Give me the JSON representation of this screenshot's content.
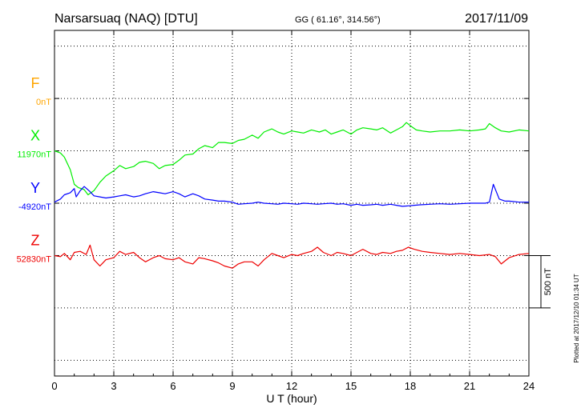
{
  "header": {
    "station": "Narsarsuaq (NAQ)  [DTU]",
    "coords": "GG ( 61.16°, 314.56°)",
    "date": "2017/11/09"
  },
  "footer": {
    "plotted": "Plotted at 2017/12/10 01:34 UT"
  },
  "chart_data": {
    "type": "line",
    "xlabel": "U T (hour)",
    "xlim": [
      0,
      24
    ],
    "xticks": [
      "0",
      "3",
      "6",
      "9",
      "12",
      "15",
      "18",
      "21",
      "24"
    ],
    "ylim_nT": [
      -1650,
      1650
    ],
    "scale_bar_label": "500 nT",
    "scale_bar_nT": 500,
    "series": [
      {
        "name": "F",
        "baseline_label": "0nT",
        "baseline_offset_nT": 1000,
        "color": "#ffa500",
        "x": [],
        "values": []
      },
      {
        "name": "X",
        "baseline_label": "11970nT",
        "baseline_offset_nT": 500,
        "color": "#00ee00",
        "x": [
          0,
          0.3,
          0.5,
          0.8,
          1.0,
          1.2,
          1.5,
          1.7,
          2.0,
          2.3,
          2.6,
          3.0,
          3.3,
          3.6,
          4.0,
          4.3,
          4.6,
          5.0,
          5.3,
          5.6,
          6.0,
          6.3,
          6.6,
          7.0,
          7.3,
          7.6,
          8.0,
          8.3,
          8.6,
          9.0,
          9.3,
          9.6,
          10.0,
          10.3,
          10.6,
          11.0,
          11.3,
          11.6,
          12.0,
          12.3,
          12.6,
          13.0,
          13.2,
          13.4,
          13.7,
          14.0,
          14.3,
          14.6,
          15.0,
          15.3,
          15.6,
          16.0,
          16.3,
          16.6,
          17.0,
          17.3,
          17.6,
          17.8,
          18.0,
          18.3,
          18.6,
          19.0,
          19.5,
          20.0,
          20.5,
          21.0,
          21.5,
          21.8,
          22.0,
          22.3,
          22.6,
          23.0,
          23.5,
          24.0
        ],
        "values": [
          500,
          480,
          440,
          320,
          180,
          150,
          130,
          80,
          120,
          200,
          260,
          310,
          360,
          330,
          350,
          390,
          400,
          380,
          330,
          360,
          370,
          410,
          460,
          470,
          520,
          550,
          530,
          580,
          580,
          570,
          600,
          610,
          650,
          620,
          680,
          710,
          680,
          660,
          690,
          680,
          670,
          700,
          690,
          680,
          700,
          660,
          680,
          700,
          660,
          700,
          720,
          710,
          700,
          720,
          670,
          700,
          730,
          770,
          740,
          700,
          690,
          680,
          690,
          690,
          700,
          690,
          700,
          710,
          760,
          720,
          690,
          680,
          700,
          690
        ]
      },
      {
        "name": "Y",
        "baseline_label": "-4920nT",
        "baseline_offset_nT": 0,
        "color": "#0000ff",
        "x": [
          0,
          0.3,
          0.5,
          0.8,
          1.0,
          1.1,
          1.3,
          1.5,
          1.8,
          2.0,
          2.3,
          2.6,
          3.0,
          3.3,
          3.6,
          4.0,
          4.3,
          4.6,
          5.0,
          5.3,
          5.6,
          6.0,
          6.3,
          6.6,
          7.0,
          7.3,
          7.6,
          8.0,
          8.3,
          8.6,
          9.0,
          9.3,
          9.6,
          10.0,
          10.3,
          10.6,
          11.0,
          11.3,
          11.6,
          12.0,
          12.3,
          12.6,
          13.0,
          13.3,
          13.6,
          14.0,
          14.3,
          14.6,
          15.0,
          15.3,
          15.6,
          16.0,
          16.3,
          16.6,
          17.0,
          17.3,
          17.6,
          17.9,
          18.2,
          18.5,
          19.0,
          19.5,
          20.0,
          20.5,
          21.0,
          21.5,
          21.8,
          22.0,
          22.2,
          22.5,
          22.8,
          23.0,
          23.5,
          24.0
        ],
        "values": [
          10,
          40,
          80,
          100,
          140,
          60,
          120,
          160,
          110,
          70,
          60,
          50,
          60,
          70,
          80,
          60,
          70,
          90,
          110,
          100,
          90,
          110,
          90,
          60,
          90,
          70,
          40,
          30,
          20,
          20,
          10,
          -10,
          -5,
          0,
          10,
          0,
          -5,
          -10,
          0,
          -5,
          -10,
          0,
          -5,
          -10,
          -5,
          0,
          -10,
          -5,
          -20,
          -10,
          -20,
          -15,
          -10,
          -20,
          -10,
          -20,
          -30,
          -25,
          -20,
          -15,
          -10,
          -5,
          -10,
          -5,
          0,
          0,
          0,
          10,
          180,
          40,
          20,
          20,
          10,
          10
        ]
      },
      {
        "name": "Z",
        "baseline_label": "52830nT",
        "baseline_offset_nT": -500,
        "color": "#ee0000",
        "x": [
          0,
          0.3,
          0.5,
          0.8,
          1.0,
          1.3,
          1.6,
          1.8,
          2.0,
          2.3,
          2.6,
          3.0,
          3.3,
          3.6,
          4.0,
          4.3,
          4.6,
          5.0,
          5.3,
          5.6,
          6.0,
          6.3,
          6.6,
          7.0,
          7.3,
          7.6,
          8.0,
          8.3,
          8.6,
          9.0,
          9.3,
          9.6,
          10.0,
          10.3,
          10.6,
          11.0,
          11.3,
          11.6,
          12.0,
          12.3,
          12.6,
          13.0,
          13.3,
          13.6,
          14.0,
          14.3,
          14.6,
          15.0,
          15.3,
          15.6,
          16.0,
          16.3,
          16.6,
          17.0,
          17.3,
          17.6,
          17.9,
          18.2,
          18.6,
          19.0,
          19.5,
          20.0,
          20.5,
          21.0,
          21.5,
          22.0,
          22.3,
          22.6,
          23.0,
          23.5,
          24.0
        ],
        "values": [
          -500,
          -510,
          -480,
          -540,
          -470,
          -460,
          -490,
          -400,
          -540,
          -600,
          -540,
          -520,
          -460,
          -490,
          -470,
          -520,
          -560,
          -520,
          -500,
          -530,
          -540,
          -520,
          -560,
          -580,
          -520,
          -530,
          -550,
          -570,
          -600,
          -620,
          -580,
          -560,
          -560,
          -600,
          -540,
          -480,
          -500,
          -520,
          -490,
          -500,
          -480,
          -460,
          -420,
          -470,
          -500,
          -470,
          -480,
          -500,
          -470,
          -440,
          -480,
          -490,
          -470,
          -480,
          -460,
          -450,
          -420,
          -440,
          -460,
          -470,
          -480,
          -490,
          -480,
          -490,
          -500,
          -490,
          -510,
          -580,
          -520,
          -490,
          -480
        ]
      }
    ]
  }
}
